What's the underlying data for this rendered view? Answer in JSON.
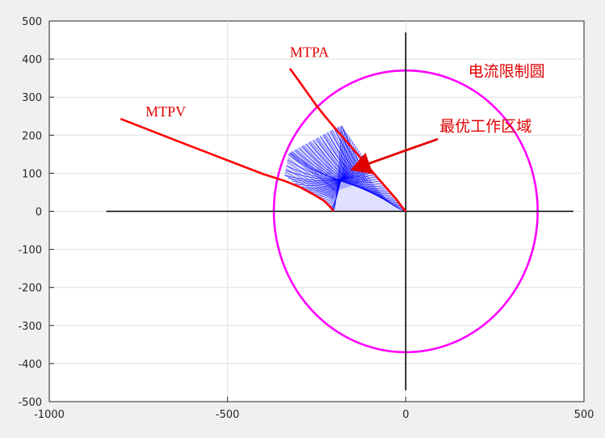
{
  "chart_data": {
    "type": "line",
    "title": "",
    "xlabel": "",
    "ylabel": "",
    "xlim": [
      -1000,
      500
    ],
    "ylim": [
      -500,
      500
    ],
    "x_ticks": [
      -1000,
      -500,
      0,
      500
    ],
    "y_ticks": [
      500,
      400,
      300,
      200,
      100,
      0,
      -100,
      -200,
      -300,
      -400,
      -500
    ],
    "x_tick_labels": [
      "-1000",
      "-500",
      "0",
      "500"
    ],
    "y_tick_labels": [
      "500",
      "400",
      "300",
      "200",
      "100",
      "0",
      "-100",
      "-200",
      "-300",
      "-400",
      "-500"
    ],
    "grid": true,
    "colors": {
      "grid": "#dfdfdf",
      "axes_lines": "#000000",
      "current_limit_circle": "#ff00ff",
      "curves": "#ff0000",
      "region": "#0000ff",
      "annotation": "#e00000"
    },
    "series": [
      {
        "kind": "circle",
        "center": [
          0,
          0
        ],
        "radius": 370
      },
      {
        "kind": "axis_line",
        "x": [
          -840,
          470
        ],
        "y": [
          0,
          0
        ]
      },
      {
        "kind": "axis_line",
        "x": [
          0,
          0
        ],
        "y": [
          -470,
          470
        ]
      },
      {
        "kind": "line",
        "x": [
          -325,
          -300,
          -275,
          -250,
          -225,
          -200,
          -175,
          -150,
          -125,
          -100,
          -75,
          -50,
          -25,
          -10,
          0
        ],
        "y": [
          375,
          343,
          310,
          277,
          248,
          220,
          193,
          166,
          139,
          111,
          84,
          57,
          30,
          11,
          0
        ]
      },
      {
        "kind": "line",
        "x": [
          -800,
          -600,
          -400,
          -340,
          -300,
          -260,
          -230,
          -210,
          -203
        ],
        "y": [
          243,
          170,
          98,
          80,
          65,
          45,
          28,
          10,
          0
        ]
      }
    ],
    "region": {
      "outer_x": [
        -340,
        -335,
        -330,
        -320,
        -300,
        -280,
        -260,
        -240,
        -220,
        -200,
        -180
      ],
      "outer_y": [
        95,
        120,
        150,
        157,
        167,
        177,
        187,
        197,
        207,
        217,
        225
      ],
      "mtpa_x": [
        -180,
        -160,
        -140,
        -120,
        -100,
        -80,
        -60,
        -40,
        -20,
        0
      ],
      "mtpa_y": [
        225,
        199,
        172,
        145,
        117,
        90,
        63,
        41,
        20,
        0
      ],
      "mtpv_x": [
        -340,
        -300,
        -260,
        -230,
        -210,
        -203
      ],
      "mtpv_y": [
        95,
        65,
        45,
        28,
        10,
        0
      ]
    },
    "annotations": [
      {
        "text": "MTPA",
        "x": -325,
        "y": 405,
        "arrow": false
      },
      {
        "text": "MTPV",
        "x": -730,
        "y": 250,
        "arrow": false
      },
      {
        "text": "电流限制圆",
        "x": 175,
        "y": 355,
        "arrow": false
      },
      {
        "text": "最优工作区域",
        "x": 95,
        "y": 210,
        "arrow_from": [
          90,
          190
        ],
        "arrow_to": [
          -150,
          110
        ]
      }
    ]
  }
}
